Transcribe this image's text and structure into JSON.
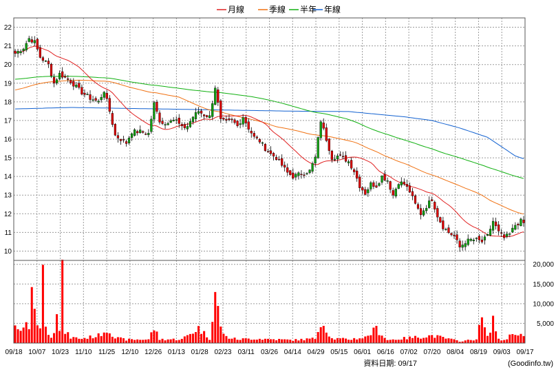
{
  "legend": [
    {
      "label": "月線",
      "color": "#e02020"
    },
    {
      "label": "季線",
      "color": "#f07010"
    },
    {
      "label": "半年",
      "color": "#10b010"
    },
    {
      "label": "年線",
      "color": "#1060d0"
    }
  ],
  "footer": {
    "date_label": "資料日期: 09/17",
    "source": "(Goodinfo.tw)"
  },
  "colors": {
    "up": "#10a010",
    "down": "#e00000",
    "volume": "#ff0000",
    "grid": "#9a9a9a"
  },
  "chart_data": {
    "type": "candlestick",
    "price_axis": {
      "ticks": [
        10,
        11,
        12,
        13,
        14,
        15,
        16,
        17,
        18,
        19,
        20,
        21,
        22
      ],
      "ylim": [
        9.5,
        22.5
      ]
    },
    "volume_axis": {
      "ticks": [
        "5,000",
        "10,000",
        "15,000",
        "20,000"
      ],
      "tick_values": [
        5000,
        10000,
        15000,
        20000
      ],
      "ylim": [
        0,
        21000
      ]
    },
    "x_labels": [
      "09/18",
      "10/07",
      "10/23",
      "11/10",
      "11/25",
      "12/10",
      "12/26",
      "01/13",
      "01/28",
      "02/23",
      "03/11",
      "03/26",
      "04/14",
      "04/29",
      "05/15",
      "06/01",
      "06/16",
      "07/02",
      "07/20",
      "08/04",
      "08/19",
      "09/03",
      "09/17"
    ],
    "close_anchors": [
      [
        0,
        20.6
      ],
      [
        3,
        20.9
      ],
      [
        5,
        21.4
      ],
      [
        7,
        21.2
      ],
      [
        9,
        20.4
      ],
      [
        12,
        20.0
      ],
      [
        14,
        19.0
      ],
      [
        16,
        19.5
      ],
      [
        18,
        19.3
      ],
      [
        20,
        19.1
      ],
      [
        22,
        18.8
      ],
      [
        24,
        18.5
      ],
      [
        27,
        18.2
      ],
      [
        30,
        18.0
      ],
      [
        32,
        18.6
      ],
      [
        34,
        17.5
      ],
      [
        36,
        16.2
      ],
      [
        38,
        16.0
      ],
      [
        40,
        15.8
      ],
      [
        42,
        16.4
      ],
      [
        45,
        16.4
      ],
      [
        48,
        16.3
      ],
      [
        50,
        17.9
      ],
      [
        52,
        17.0
      ],
      [
        54,
        16.8
      ],
      [
        56,
        17.1
      ],
      [
        58,
        17.0
      ],
      [
        60,
        16.6
      ],
      [
        62,
        16.7
      ],
      [
        64,
        17.2
      ],
      [
        66,
        17.5
      ],
      [
        68,
        17.3
      ],
      [
        70,
        17.2
      ],
      [
        72,
        18.8
      ],
      [
        74,
        17.0
      ],
      [
        76,
        16.9
      ],
      [
        78,
        17.0
      ],
      [
        80,
        16.7
      ],
      [
        82,
        17.2
      ],
      [
        84,
        16.6
      ],
      [
        86,
        16.1
      ],
      [
        88,
        15.9
      ],
      [
        90,
        15.5
      ],
      [
        92,
        15.2
      ],
      [
        94,
        15.0
      ],
      [
        96,
        14.6
      ],
      [
        98,
        14.2
      ],
      [
        100,
        14.0
      ],
      [
        102,
        14.1
      ],
      [
        104,
        14.2
      ],
      [
        106,
        14.3
      ],
      [
        108,
        15.0
      ],
      [
        110,
        17.0
      ],
      [
        112,
        16.0
      ],
      [
        114,
        15.0
      ],
      [
        116,
        15.1
      ],
      [
        118,
        15.0
      ],
      [
        120,
        14.8
      ],
      [
        122,
        14.3
      ],
      [
        124,
        13.5
      ],
      [
        126,
        13.1
      ],
      [
        128,
        13.6
      ],
      [
        130,
        13.5
      ],
      [
        132,
        14.0
      ],
      [
        134,
        13.8
      ],
      [
        136,
        13.0
      ],
      [
        138,
        13.7
      ],
      [
        140,
        13.6
      ],
      [
        142,
        13.2
      ],
      [
        144,
        12.5
      ],
      [
        146,
        12.0
      ],
      [
        148,
        12.4
      ],
      [
        150,
        12.8
      ],
      [
        152,
        11.9
      ],
      [
        154,
        11.3
      ],
      [
        156,
        11.0
      ],
      [
        158,
        10.8
      ],
      [
        160,
        10.2
      ],
      [
        162,
        10.5
      ],
      [
        164,
        10.6
      ],
      [
        166,
        10.6
      ],
      [
        168,
        10.5
      ],
      [
        170,
        10.8
      ],
      [
        172,
        11.6
      ],
      [
        174,
        11.0
      ],
      [
        176,
        10.7
      ],
      [
        178,
        10.9
      ],
      [
        180,
        11.4
      ],
      [
        182,
        11.6
      ],
      [
        183,
        11.5
      ]
    ],
    "volume_anchors": [
      [
        0,
        4000
      ],
      [
        2,
        2500
      ],
      [
        4,
        8000
      ],
      [
        5,
        4000
      ],
      [
        6,
        13000
      ],
      [
        7,
        9800
      ],
      [
        8,
        5000
      ],
      [
        9,
        5000
      ],
      [
        10,
        20800
      ],
      [
        11,
        3800
      ],
      [
        13,
        2000
      ],
      [
        14,
        3800
      ],
      [
        15,
        9300
      ],
      [
        16,
        3000
      ],
      [
        17,
        17400
      ],
      [
        18,
        3000
      ],
      [
        20,
        1500
      ],
      [
        24,
        1200
      ],
      [
        30,
        2000
      ],
      [
        32,
        3200
      ],
      [
        34,
        3500
      ],
      [
        36,
        1400
      ],
      [
        40,
        900
      ],
      [
        48,
        1000
      ],
      [
        50,
        4000
      ],
      [
        52,
        1000
      ],
      [
        60,
        1000
      ],
      [
        66,
        4000
      ],
      [
        70,
        1200
      ],
      [
        72,
        13700
      ],
      [
        74,
        4000
      ],
      [
        76,
        1600
      ],
      [
        80,
        1000
      ],
      [
        86,
        1200
      ],
      [
        100,
        800
      ],
      [
        108,
        1200
      ],
      [
        110,
        6200
      ],
      [
        112,
        3600
      ],
      [
        114,
        1200
      ],
      [
        120,
        1000
      ],
      [
        126,
        1500
      ],
      [
        130,
        3800
      ],
      [
        134,
        800
      ],
      [
        150,
        2000
      ],
      [
        160,
        500
      ],
      [
        164,
        800
      ],
      [
        166,
        1200
      ],
      [
        168,
        6500
      ],
      [
        170,
        1500
      ],
      [
        172,
        6500
      ],
      [
        174,
        900
      ],
      [
        176,
        800
      ],
      [
        180,
        3000
      ],
      [
        183,
        1800
      ]
    ],
    "sessions": 184,
    "ma_periods": {
      "月線": 20,
      "季線": 60,
      "半年": 120,
      "年線": 240
    },
    "long_ma": {
      "半年_start": 19.2,
      "年線": [
        [
          0,
          17.62
        ],
        [
          20,
          17.7
        ],
        [
          40,
          17.65
        ],
        [
          60,
          17.6
        ],
        [
          80,
          17.55
        ],
        [
          100,
          17.5
        ],
        [
          120,
          17.48
        ],
        [
          140,
          17.2
        ],
        [
          150,
          17.0
        ],
        [
          160,
          16.6
        ],
        [
          170,
          16.1
        ],
        [
          180,
          15.1
        ],
        [
          183,
          14.95
        ]
      ]
    }
  }
}
